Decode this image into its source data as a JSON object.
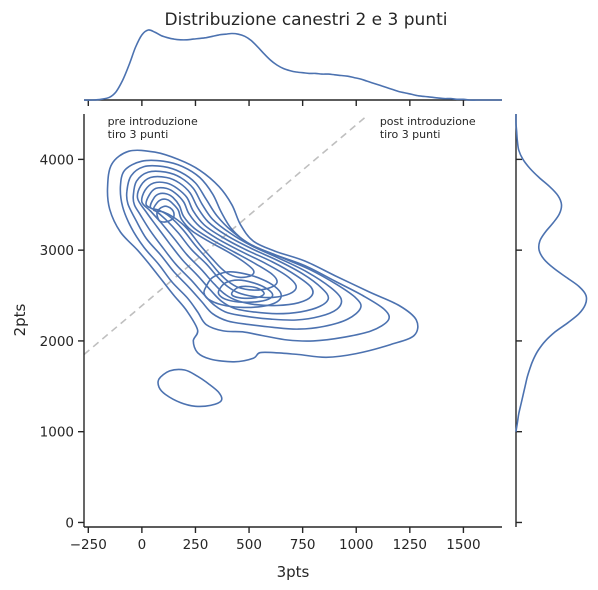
{
  "chart_data": {
    "type": "kde-joint",
    "title": "Distribuzione canestri 2 e 3 punti",
    "xlabel": "3pts",
    "ylabel": "2pts",
    "xlim": [
      -270,
      1680
    ],
    "ylim": [
      -50,
      4500
    ],
    "xticks": [
      -250,
      0,
      250,
      500,
      750,
      1000,
      1250,
      1500
    ],
    "yticks": [
      0,
      1000,
      2000,
      3000,
      4000
    ],
    "grid": false,
    "color": "#4c72b0",
    "diagonal": {
      "style": "dashed",
      "color": "#bfbfbf",
      "points": [
        [
          -270,
          1850
        ],
        [
          1050,
          4480
        ]
      ]
    },
    "annotations": [
      {
        "lines": [
          "pre introduzione",
          "tiro 3 punti"
        ],
        "x": -160,
        "y": 4380
      },
      {
        "lines": [
          "post introduzione",
          "tiro 3 punti"
        ],
        "x": 1110,
        "y": 4380
      }
    ],
    "contours": [
      [
        [
          -160,
          3700
        ],
        [
          -140,
          3950
        ],
        [
          -60,
          4090
        ],
        [
          60,
          4080
        ],
        [
          170,
          4000
        ],
        [
          270,
          3880
        ],
        [
          360,
          3700
        ],
        [
          420,
          3500
        ],
        [
          460,
          3280
        ],
        [
          520,
          3100
        ],
        [
          620,
          2990
        ],
        [
          760,
          2880
        ],
        [
          900,
          2720
        ],
        [
          1060,
          2540
        ],
        [
          1200,
          2390
        ],
        [
          1280,
          2230
        ],
        [
          1270,
          2060
        ],
        [
          1160,
          1960
        ],
        [
          1000,
          1860
        ],
        [
          860,
          1820
        ],
        [
          730,
          1850
        ],
        [
          620,
          1870
        ],
        [
          550,
          1870
        ],
        [
          520,
          1810
        ],
        [
          430,
          1770
        ],
        [
          320,
          1800
        ],
        [
          260,
          1870
        ],
        [
          240,
          2000
        ],
        [
          260,
          2120
        ],
        [
          210,
          2330
        ],
        [
          150,
          2500
        ],
        [
          100,
          2650
        ],
        [
          40,
          2830
        ],
        [
          -20,
          3000
        ],
        [
          -100,
          3200
        ],
        [
          -150,
          3450
        ]
      ],
      [
        [
          -100,
          3700
        ],
        [
          -80,
          3880
        ],
        [
          0,
          3980
        ],
        [
          100,
          3980
        ],
        [
          190,
          3920
        ],
        [
          270,
          3800
        ],
        [
          330,
          3620
        ],
        [
          370,
          3420
        ],
        [
          420,
          3230
        ],
        [
          500,
          3070
        ],
        [
          620,
          2950
        ],
        [
          760,
          2830
        ],
        [
          900,
          2660
        ],
        [
          1030,
          2500
        ],
        [
          1130,
          2350
        ],
        [
          1150,
          2230
        ],
        [
          1070,
          2110
        ],
        [
          940,
          2040
        ],
        [
          800,
          2000
        ],
        [
          680,
          2010
        ],
        [
          560,
          2060
        ],
        [
          470,
          2100
        ],
        [
          380,
          2110
        ],
        [
          300,
          2180
        ],
        [
          260,
          2320
        ],
        [
          210,
          2480
        ],
        [
          140,
          2650
        ],
        [
          80,
          2840
        ],
        [
          10,
          3030
        ],
        [
          -50,
          3250
        ],
        [
          -90,
          3480
        ]
      ],
      [
        [
          -70,
          3650
        ],
        [
          -50,
          3820
        ],
        [
          10,
          3920
        ],
        [
          100,
          3920
        ],
        [
          180,
          3860
        ],
        [
          250,
          3740
        ],
        [
          300,
          3560
        ],
        [
          350,
          3380
        ],
        [
          420,
          3210
        ],
        [
          510,
          3060
        ],
        [
          640,
          2930
        ],
        [
          780,
          2790
        ],
        [
          910,
          2620
        ],
        [
          1000,
          2470
        ],
        [
          1020,
          2360
        ],
        [
          960,
          2240
        ],
        [
          850,
          2160
        ],
        [
          730,
          2130
        ],
        [
          610,
          2150
        ],
        [
          500,
          2180
        ],
        [
          400,
          2220
        ],
        [
          330,
          2300
        ],
        [
          280,
          2430
        ],
        [
          220,
          2590
        ],
        [
          150,
          2760
        ],
        [
          90,
          2940
        ],
        [
          20,
          3130
        ],
        [
          -30,
          3340
        ],
        [
          -65,
          3510
        ]
      ],
      [
        [
          -40,
          3600
        ],
        [
          -25,
          3760
        ],
        [
          30,
          3860
        ],
        [
          110,
          3860
        ],
        [
          180,
          3800
        ],
        [
          240,
          3680
        ],
        [
          280,
          3510
        ],
        [
          330,
          3340
        ],
        [
          410,
          3190
        ],
        [
          510,
          3050
        ],
        [
          640,
          2910
        ],
        [
          770,
          2760
        ],
        [
          880,
          2590
        ],
        [
          930,
          2460
        ],
        [
          910,
          2350
        ],
        [
          830,
          2270
        ],
        [
          720,
          2230
        ],
        [
          600,
          2240
        ],
        [
          490,
          2270
        ],
        [
          400,
          2310
        ],
        [
          340,
          2390
        ],
        [
          290,
          2510
        ],
        [
          230,
          2670
        ],
        [
          160,
          2840
        ],
        [
          100,
          3020
        ],
        [
          40,
          3210
        ],
        [
          -10,
          3400
        ],
        [
          -35,
          3500
        ]
      ],
      [
        [
          -20,
          3570
        ],
        [
          -5,
          3710
        ],
        [
          40,
          3800
        ],
        [
          115,
          3800
        ],
        [
          175,
          3740
        ],
        [
          225,
          3630
        ],
        [
          260,
          3470
        ],
        [
          310,
          3310
        ],
        [
          390,
          3170
        ],
        [
          500,
          3030
        ],
        [
          630,
          2890
        ],
        [
          750,
          2740
        ],
        [
          840,
          2580
        ],
        [
          870,
          2470
        ],
        [
          830,
          2380
        ],
        [
          740,
          2320
        ],
        [
          630,
          2300
        ],
        [
          520,
          2320
        ],
        [
          430,
          2360
        ],
        [
          370,
          2440
        ],
        [
          320,
          2560
        ],
        [
          260,
          2720
        ],
        [
          190,
          2890
        ],
        [
          130,
          3070
        ],
        [
          70,
          3260
        ],
        [
          20,
          3420
        ]
      ],
      [
        [
          0,
          3530
        ],
        [
          15,
          3660
        ],
        [
          55,
          3740
        ],
        [
          115,
          3740
        ],
        [
          165,
          3680
        ],
        [
          210,
          3580
        ],
        [
          240,
          3430
        ],
        [
          290,
          3280
        ],
        [
          370,
          3150
        ],
        [
          480,
          3010
        ],
        [
          610,
          2870
        ],
        [
          720,
          2720
        ],
        [
          790,
          2590
        ],
        [
          790,
          2490
        ],
        [
          730,
          2420
        ],
        [
          630,
          2390
        ],
        [
          530,
          2400
        ],
        [
          450,
          2440
        ],
        [
          390,
          2510
        ],
        [
          340,
          2620
        ],
        [
          280,
          2780
        ],
        [
          210,
          2950
        ],
        [
          150,
          3130
        ],
        [
          90,
          3300
        ],
        [
          40,
          3430
        ]
      ],
      [
        [
          20,
          3500
        ],
        [
          35,
          3610
        ],
        [
          65,
          3680
        ],
        [
          115,
          3680
        ],
        [
          155,
          3630
        ],
        [
          195,
          3530
        ],
        [
          220,
          3400
        ],
        [
          270,
          3260
        ],
        [
          350,
          3130
        ],
        [
          460,
          2990
        ],
        [
          580,
          2850
        ],
        [
          680,
          2710
        ],
        [
          720,
          2600
        ],
        [
          690,
          2520
        ],
        [
          610,
          2480
        ],
        [
          520,
          2490
        ],
        [
          450,
          2530
        ],
        [
          400,
          2600
        ],
        [
          355,
          2700
        ],
        [
          300,
          2850
        ],
        [
          230,
          3010
        ],
        [
          170,
          3190
        ],
        [
          110,
          3340
        ],
        [
          60,
          3440
        ]
      ],
      [
        [
          40,
          3470
        ],
        [
          55,
          3570
        ],
        [
          80,
          3620
        ],
        [
          115,
          3620
        ],
        [
          145,
          3580
        ],
        [
          175,
          3490
        ],
        [
          195,
          3370
        ],
        [
          245,
          3240
        ],
        [
          330,
          3110
        ],
        [
          430,
          2980
        ],
        [
          530,
          2850
        ],
        [
          610,
          2730
        ],
        [
          630,
          2640
        ],
        [
          590,
          2580
        ],
        [
          520,
          2560
        ],
        [
          450,
          2590
        ],
        [
          400,
          2660
        ],
        [
          360,
          2750
        ],
        [
          310,
          2890
        ],
        [
          250,
          3050
        ],
        [
          190,
          3230
        ],
        [
          130,
          3370
        ],
        [
          80,
          3440
        ]
      ],
      [
        [
          55,
          3440
        ],
        [
          70,
          3520
        ],
        [
          95,
          3560
        ],
        [
          120,
          3555
        ],
        [
          145,
          3510
        ],
        [
          170,
          3440
        ],
        [
          185,
          3340
        ],
        [
          230,
          3220
        ],
        [
          310,
          3100
        ],
        [
          395,
          2990
        ],
        [
          470,
          2880
        ],
        [
          520,
          2780
        ],
        [
          510,
          2720
        ],
        [
          460,
          2700
        ],
        [
          410,
          2730
        ],
        [
          370,
          2800
        ],
        [
          330,
          2900
        ],
        [
          270,
          3060
        ],
        [
          210,
          3240
        ],
        [
          150,
          3360
        ],
        [
          100,
          3420
        ]
      ],
      [
        [
          70,
          3400
        ],
        [
          80,
          3450
        ],
        [
          100,
          3480
        ],
        [
          120,
          3480
        ],
        [
          140,
          3450
        ],
        [
          150,
          3400
        ],
        [
          145,
          3350
        ],
        [
          125,
          3320
        ],
        [
          100,
          3310
        ],
        [
          80,
          3330
        ]
      ],
      [
        [
          300,
          2600
        ],
        [
          330,
          2700
        ],
        [
          400,
          2760
        ],
        [
          480,
          2740
        ],
        [
          560,
          2680
        ],
        [
          620,
          2600
        ],
        [
          650,
          2510
        ],
        [
          630,
          2430
        ],
        [
          560,
          2380
        ],
        [
          460,
          2370
        ],
        [
          370,
          2400
        ],
        [
          310,
          2460
        ],
        [
          290,
          2530
        ]
      ],
      [
        [
          360,
          2560
        ],
        [
          390,
          2640
        ],
        [
          450,
          2670
        ],
        [
          520,
          2640
        ],
        [
          580,
          2580
        ],
        [
          610,
          2510
        ],
        [
          590,
          2460
        ],
        [
          530,
          2430
        ],
        [
          450,
          2430
        ],
        [
          390,
          2460
        ],
        [
          360,
          2510
        ]
      ],
      [
        [
          420,
          2530
        ],
        [
          450,
          2590
        ],
        [
          500,
          2600
        ],
        [
          550,
          2570
        ],
        [
          570,
          2520
        ],
        [
          540,
          2480
        ],
        [
          480,
          2470
        ],
        [
          430,
          2490
        ]
      ],
      [
        [
          80,
          1580
        ],
        [
          130,
          1670
        ],
        [
          200,
          1680
        ],
        [
          260,
          1610
        ],
        [
          310,
          1530
        ],
        [
          360,
          1430
        ],
        [
          370,
          1340
        ],
        [
          320,
          1290
        ],
        [
          250,
          1280
        ],
        [
          180,
          1320
        ],
        [
          110,
          1410
        ],
        [
          80,
          1490
        ]
      ]
    ],
    "marginal_x": {
      "x": [
        -270,
        -230,
        -190,
        -150,
        -120,
        -90,
        -60,
        -30,
        0,
        30,
        60,
        90,
        120,
        150,
        180,
        210,
        240,
        270,
        300,
        330,
        360,
        390,
        420,
        450,
        480,
        510,
        540,
        570,
        600,
        630,
        660,
        690,
        720,
        750,
        780,
        810,
        840,
        870,
        900,
        930,
        960,
        990,
        1020,
        1050,
        1080,
        1110,
        1140,
        1170,
        1200,
        1230,
        1260,
        1290,
        1320,
        1350,
        1380,
        1410,
        1440,
        1470,
        1500,
        1530,
        1560,
        1590,
        1620,
        1650,
        1680
      ],
      "y": [
        0.0,
        0.0,
        0.01,
        0.04,
        0.12,
        0.28,
        0.5,
        0.75,
        0.93,
        1.0,
        0.97,
        0.92,
        0.89,
        0.87,
        0.86,
        0.86,
        0.87,
        0.88,
        0.89,
        0.91,
        0.93,
        0.94,
        0.95,
        0.94,
        0.91,
        0.85,
        0.76,
        0.66,
        0.57,
        0.5,
        0.45,
        0.42,
        0.4,
        0.39,
        0.38,
        0.38,
        0.37,
        0.37,
        0.36,
        0.35,
        0.34,
        0.32,
        0.3,
        0.27,
        0.24,
        0.21,
        0.18,
        0.15,
        0.12,
        0.1,
        0.08,
        0.06,
        0.05,
        0.04,
        0.03,
        0.02,
        0.02,
        0.01,
        0.01,
        0.0,
        0.0,
        0.0,
        0.0,
        0.0,
        0.0
      ]
    },
    "marginal_y": {
      "y": [
        1000,
        1100,
        1200,
        1300,
        1400,
        1500,
        1600,
        1700,
        1800,
        1900,
        2000,
        2100,
        2200,
        2300,
        2400,
        2500,
        2600,
        2700,
        2800,
        2900,
        3000,
        3100,
        3200,
        3300,
        3400,
        3500,
        3600,
        3700,
        3800,
        3900,
        4000,
        4100,
        4200,
        4300,
        4400,
        4500
      ],
      "density": [
        0.0,
        0.02,
        0.04,
        0.07,
        0.1,
        0.13,
        0.16,
        0.2,
        0.25,
        0.32,
        0.42,
        0.56,
        0.74,
        0.9,
        0.99,
        1.0,
        0.9,
        0.72,
        0.54,
        0.4,
        0.33,
        0.34,
        0.42,
        0.53,
        0.62,
        0.65,
        0.6,
        0.48,
        0.33,
        0.2,
        0.1,
        0.04,
        0.02,
        0.01,
        0.0,
        0.0
      ]
    }
  }
}
